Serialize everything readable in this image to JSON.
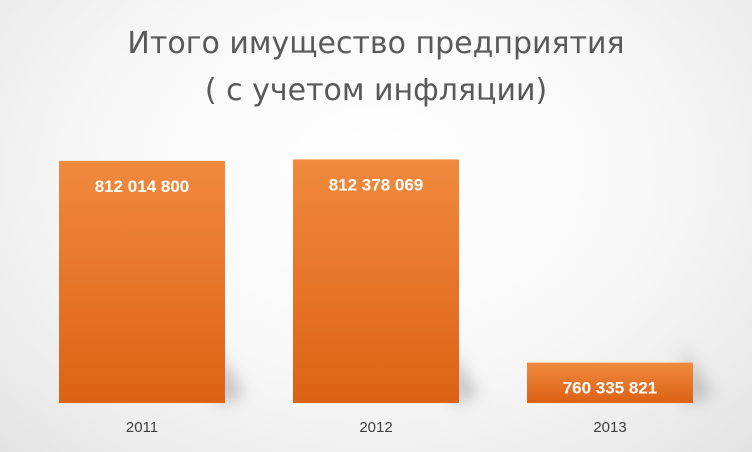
{
  "chart_data": {
    "type": "bar",
    "title": "Итого имущество предприятия\n( с учетом инфляции)",
    "categories": [
      "2011",
      "2012",
      "2013"
    ],
    "values": [
      812014800,
      812378069,
      760335821
    ],
    "data_labels": [
      "812 014 800",
      "812 378 069",
      "760 335 821"
    ],
    "ylim": [
      750000000,
      813000000
    ],
    "grid": false,
    "legend": "none",
    "colors": {
      "bar_top": "#F08A3E",
      "bar_bottom": "#DC6214",
      "shadow": "#9a9a9a",
      "title": "#595959"
    }
  }
}
